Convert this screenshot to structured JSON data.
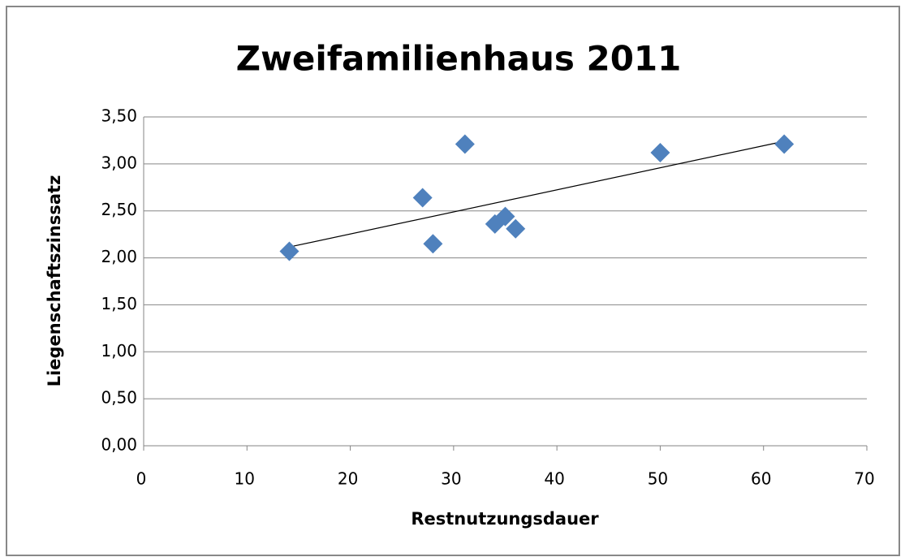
{
  "chart_data": {
    "type": "scatter",
    "title": "Zweifamilienhaus 2011",
    "x_label": "Restnutzungsdauer",
    "y_label": "Liegenschaftszinssatz",
    "x": [
      14.1,
      27.0,
      28.0,
      31.1,
      34.0,
      35.0,
      36.0,
      50.0,
      62.0
    ],
    "values": [
      2.07,
      2.64,
      2.15,
      3.21,
      2.36,
      2.44,
      2.31,
      3.12,
      3.21
    ],
    "color": "#4f81bd",
    "trendline": "linear",
    "grid": true,
    "xlim": [
      0,
      70
    ],
    "xticks": [
      0,
      10,
      20,
      30,
      40,
      50,
      60,
      70
    ],
    "ylim": [
      0,
      3.5
    ],
    "yticks": [
      {
        "value": 0,
        "label": "0,00"
      },
      {
        "value": 0.5,
        "label": "0,50"
      },
      {
        "value": 1,
        "label": "1,00"
      },
      {
        "value": 1.5,
        "label": "1,50"
      },
      {
        "value": 2,
        "label": "2,00"
      },
      {
        "value": 2.5,
        "label": "2,50"
      },
      {
        "value": 3,
        "label": "3,00"
      },
      {
        "value": 3.5,
        "label": "3,50"
      }
    ]
  }
}
